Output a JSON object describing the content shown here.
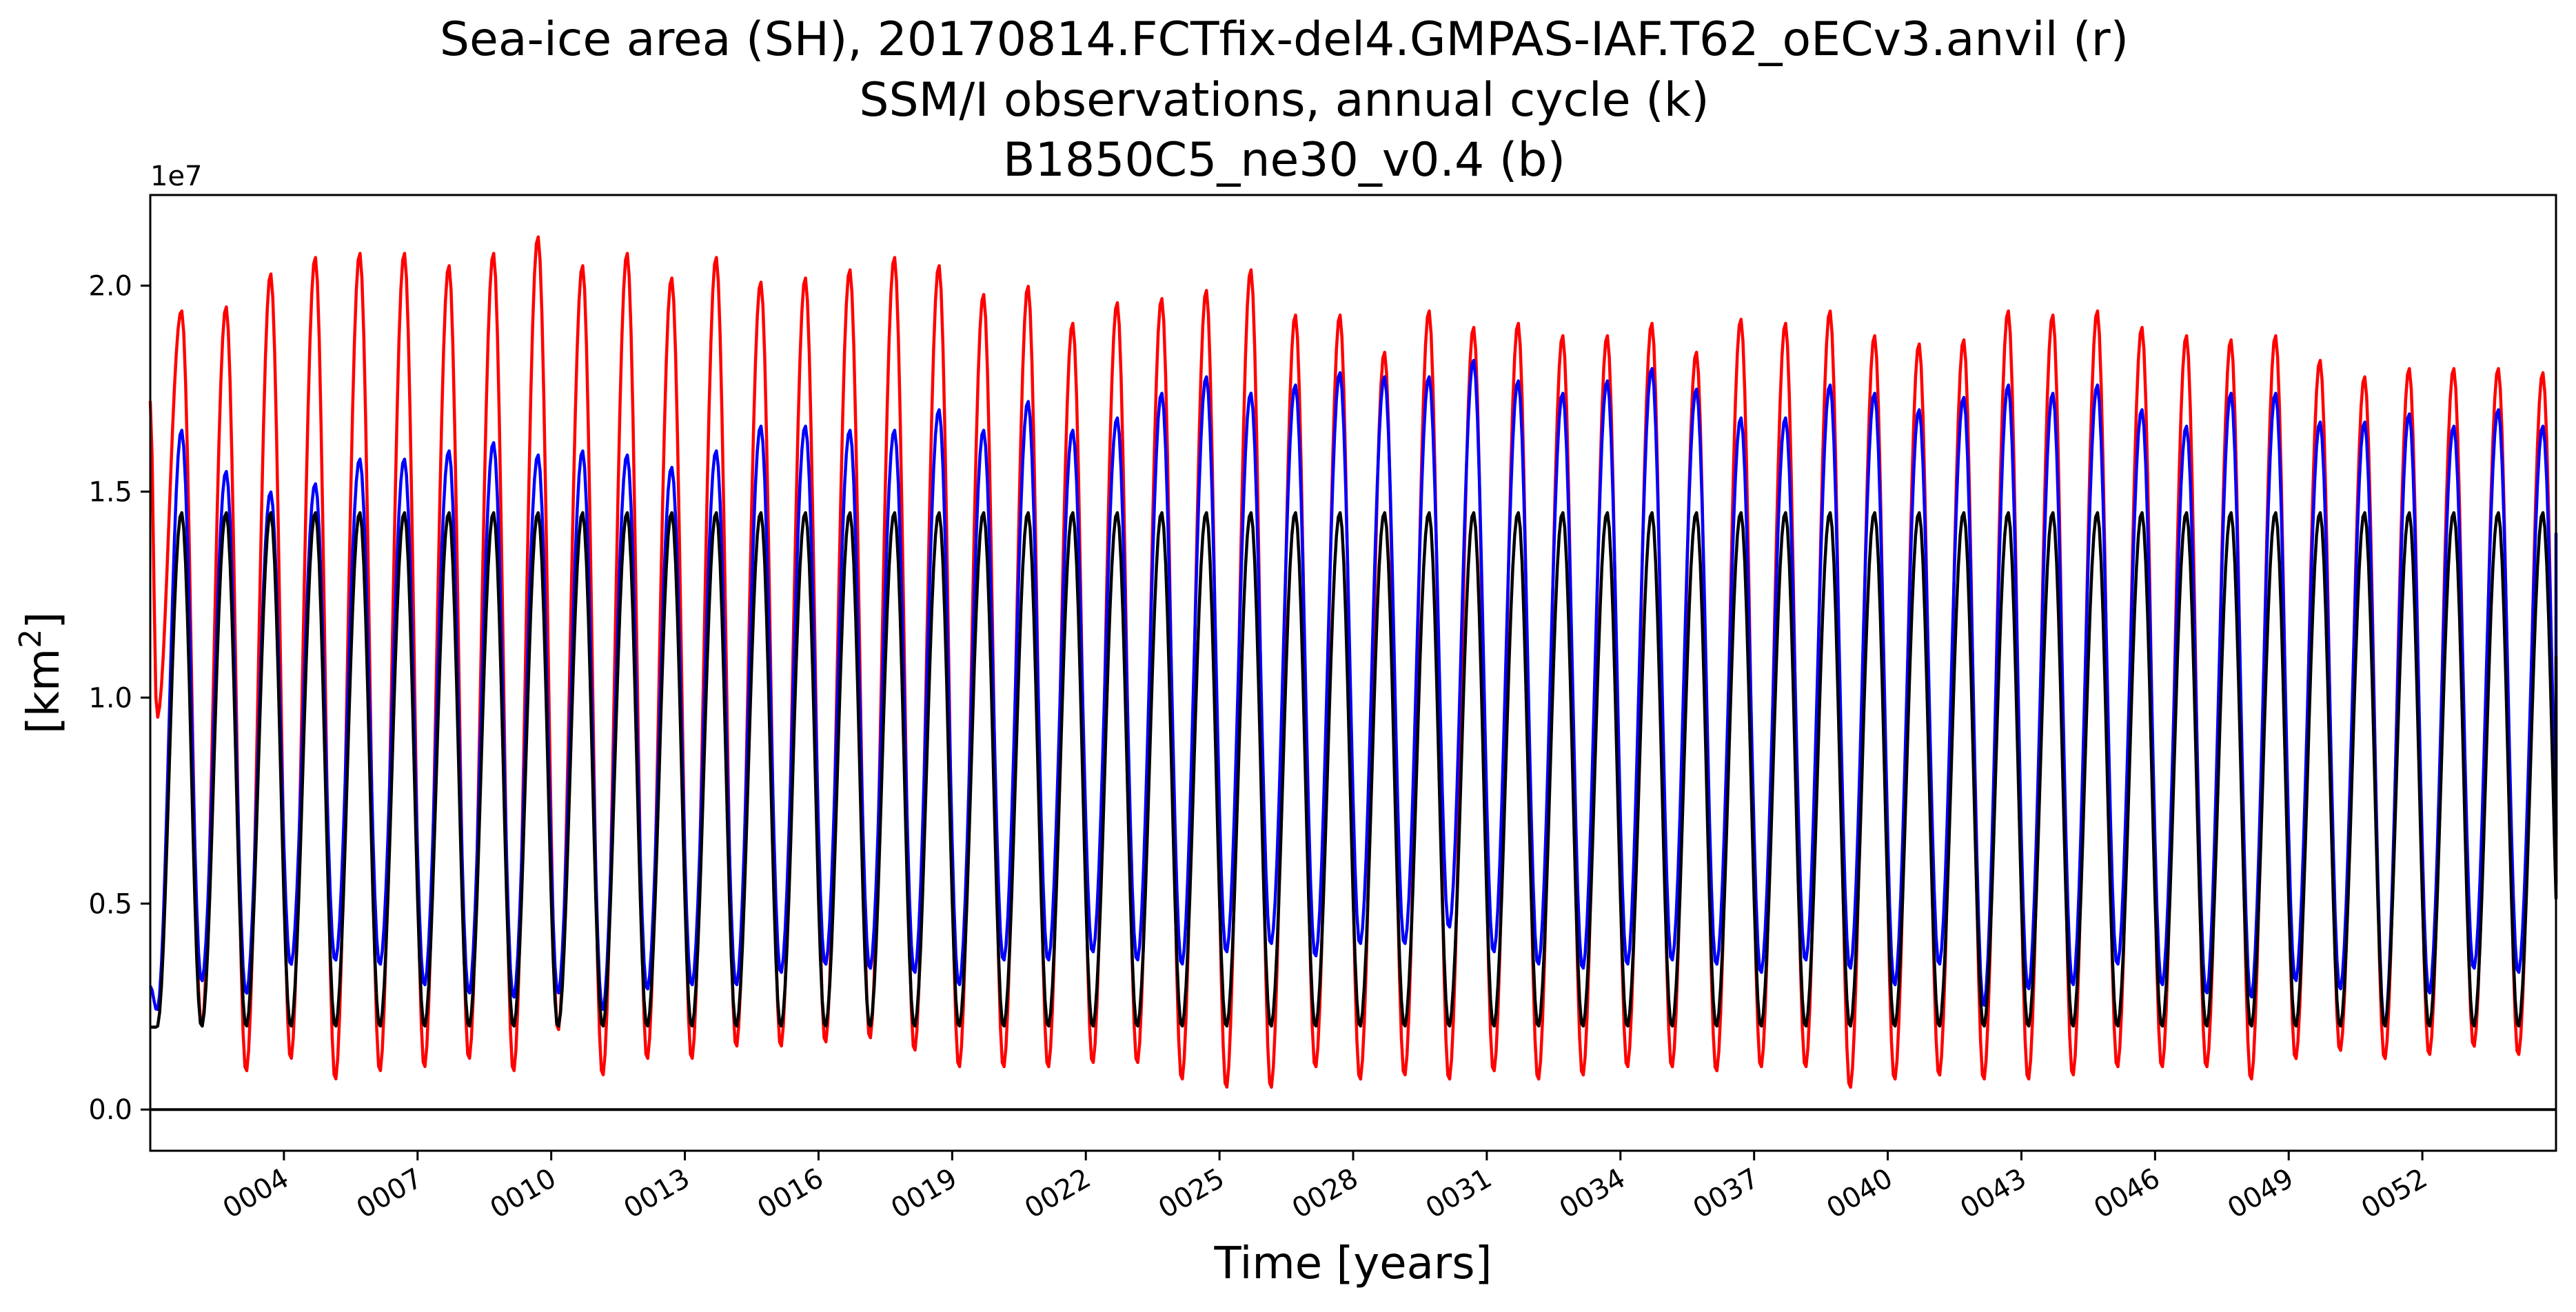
{
  "chart_data": {
    "type": "line",
    "title_lines": [
      "Sea-ice area (SH), 20170814.FCTfix-del4.GMPAS-IAF.T62_oECv3.anvil (r)",
      "SSM/I observations, annual cycle (k)",
      "B1850C5_ne30_v0.4 (b)"
    ],
    "xlabel": "Time [years]",
    "ylabel_text": "[km",
    "ylabel_sup": "2",
    "ylabel_close": "]",
    "y_offset_label": "1e7",
    "x_range": [
      1.0,
      55.0
    ],
    "y_range": [
      -0.1,
      2.22
    ],
    "y_units": "1e7 km^2",
    "grid": false,
    "x_ticks": [
      {
        "value": 4,
        "label": "0004"
      },
      {
        "value": 7,
        "label": "0007"
      },
      {
        "value": 10,
        "label": "0010"
      },
      {
        "value": 13,
        "label": "0013"
      },
      {
        "value": 16,
        "label": "0016"
      },
      {
        "value": 19,
        "label": "0019"
      },
      {
        "value": 22,
        "label": "0022"
      },
      {
        "value": 25,
        "label": "0025"
      },
      {
        "value": 28,
        "label": "0028"
      },
      {
        "value": 31,
        "label": "0031"
      },
      {
        "value": 34,
        "label": "0034"
      },
      {
        "value": 37,
        "label": "0037"
      },
      {
        "value": 40,
        "label": "0040"
      },
      {
        "value": 43,
        "label": "0043"
      },
      {
        "value": 46,
        "label": "0046"
      },
      {
        "value": 49,
        "label": "0049"
      },
      {
        "value": 52,
        "label": "0052"
      }
    ],
    "y_ticks": [
      {
        "value": 0.0,
        "label": "0.0"
      },
      {
        "value": 0.5,
        "label": "0.5"
      },
      {
        "value": 1.0,
        "label": "1.0"
      },
      {
        "value": 1.5,
        "label": "1.5"
      },
      {
        "value": 2.0,
        "label": "2.0"
      }
    ],
    "reference_line_y": 0.0,
    "series": [
      {
        "key": "r",
        "color": "#ff0000",
        "start_year": 1.0,
        "start_value": 1.72,
        "end_value": 0.7,
        "peaks": [
          1.94,
          1.95,
          2.03,
          2.07,
          2.08,
          2.08,
          2.05,
          2.08,
          2.12,
          2.05,
          2.08,
          2.02,
          2.07,
          2.01,
          2.02,
          2.04,
          2.07,
          2.05,
          1.98,
          2.0,
          1.91,
          1.96,
          1.97,
          1.99,
          2.04,
          1.93,
          1.93,
          1.84,
          1.94,
          1.9,
          1.91,
          1.88,
          1.88,
          1.91,
          1.84,
          1.92,
          1.91,
          1.94,
          1.88,
          1.86,
          1.87,
          1.94,
          1.93,
          1.94,
          1.9,
          1.88,
          1.87,
          1.88,
          1.82,
          1.78,
          1.8,
          1.8,
          1.8,
          1.79
        ],
        "troughs": [
          0.95,
          0.2,
          0.09,
          0.12,
          0.07,
          0.09,
          0.1,
          0.12,
          0.09,
          0.19,
          0.08,
          0.12,
          0.12,
          0.15,
          0.15,
          0.16,
          0.17,
          0.14,
          0.1,
          0.1,
          0.1,
          0.11,
          0.11,
          0.07,
          0.05,
          0.05,
          0.1,
          0.07,
          0.08,
          0.07,
          0.09,
          0.07,
          0.08,
          0.1,
          0.1,
          0.09,
          0.1,
          0.1,
          0.05,
          0.07,
          0.08,
          0.07,
          0.07,
          0.08,
          0.1,
          0.1,
          0.1,
          0.07,
          0.12,
          0.14,
          0.12,
          0.13,
          0.15,
          0.13
        ]
      },
      {
        "key": "b",
        "color": "#0000ff",
        "start_year": 1.0,
        "start_value": 0.3,
        "end_value": 1.4,
        "peaks": [
          1.65,
          1.55,
          1.5,
          1.52,
          1.58,
          1.58,
          1.6,
          1.62,
          1.59,
          1.6,
          1.59,
          1.56,
          1.6,
          1.66,
          1.66,
          1.65,
          1.65,
          1.7,
          1.65,
          1.72,
          1.65,
          1.68,
          1.74,
          1.78,
          1.74,
          1.76,
          1.79,
          1.78,
          1.78,
          1.82,
          1.77,
          1.74,
          1.77,
          1.8,
          1.75,
          1.68,
          1.68,
          1.76,
          1.74,
          1.7,
          1.73,
          1.76,
          1.74,
          1.76,
          1.7,
          1.66,
          1.74,
          1.74,
          1.67,
          1.67,
          1.69,
          1.66,
          1.7,
          1.66
        ],
        "troughs": [
          0.24,
          0.31,
          0.28,
          0.35,
          0.36,
          0.35,
          0.3,
          0.28,
          0.27,
          0.28,
          0.24,
          0.29,
          0.3,
          0.3,
          0.33,
          0.35,
          0.34,
          0.33,
          0.3,
          0.36,
          0.36,
          0.38,
          0.36,
          0.35,
          0.38,
          0.4,
          0.37,
          0.4,
          0.4,
          0.44,
          0.38,
          0.35,
          0.34,
          0.35,
          0.36,
          0.35,
          0.33,
          0.36,
          0.34,
          0.3,
          0.35,
          0.25,
          0.29,
          0.3,
          0.35,
          0.3,
          0.28,
          0.27,
          0.31,
          0.29,
          0.2,
          0.28,
          0.34,
          0.33
        ]
      },
      {
        "key": "k",
        "color": "#000000",
        "start_year": 1.0,
        "start_value": 0.2,
        "end_value": 1.1,
        "peaks": [
          1.45
        ],
        "troughs": [
          0.2
        ],
        "repeat_annual": true
      }
    ]
  }
}
